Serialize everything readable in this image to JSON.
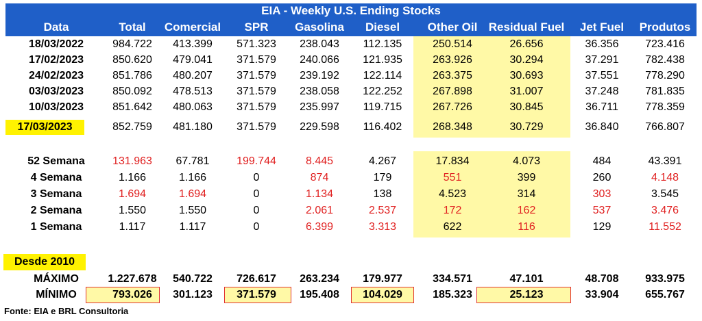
{
  "title": "EIA - Weekly U.S. Ending Stocks",
  "columns": [
    "Data",
    "Total",
    "Comercial",
    "SPR",
    "Gasolina",
    "Diesel",
    "Other Oil",
    "Residual Fuel",
    "Jet Fuel",
    "Produtos"
  ],
  "weekly_rows": [
    [
      "18/03/2022",
      "984.722",
      "413.399",
      "571.323",
      "238.043",
      "112.135",
      "250.514",
      "26.656",
      "36.356",
      "723.416"
    ],
    [
      "17/02/2023",
      "850.620",
      "479.041",
      "371.579",
      "240.066",
      "121.935",
      "263.926",
      "30.294",
      "37.291",
      "782.438"
    ],
    [
      "24/02/2023",
      "851.786",
      "480.207",
      "371.579",
      "239.192",
      "122.114",
      "263.375",
      "30.693",
      "37.551",
      "778.290"
    ],
    [
      "03/03/2023",
      "850.092",
      "478.513",
      "371.579",
      "238.058",
      "122.252",
      "267.898",
      "31.007",
      "37.248",
      "781.835"
    ],
    [
      "10/03/2023",
      "851.642",
      "480.063",
      "371.579",
      "235.997",
      "119.715",
      "267.726",
      "30.845",
      "36.711",
      "778.359"
    ],
    [
      "17/03/2023",
      "852.759",
      "481.180",
      "371.579",
      "229.598",
      "116.402",
      "268.348",
      "30.729",
      "36.840",
      "766.807"
    ]
  ],
  "change_rows": [
    [
      "52 Semana",
      "131.963",
      "67.781",
      "199.744",
      "8.445",
      "4.267",
      "17.834",
      "4.073",
      "484",
      "43.391"
    ],
    [
      "4 Semana",
      "1.166",
      "1.166",
      "0",
      "874",
      "179",
      "551",
      "399",
      "260",
      "4.148"
    ],
    [
      "3 Semana",
      "1.694",
      "1.694",
      "0",
      "1.134",
      "138",
      "4.523",
      "314",
      "303",
      "3.545"
    ],
    [
      "2 Semana",
      "1.550",
      "1.550",
      "0",
      "2.061",
      "2.537",
      "172",
      "162",
      "537",
      "3.476"
    ],
    [
      "1 Semana",
      "1.117",
      "1.117",
      "0",
      "6.399",
      "3.313",
      "622",
      "116",
      "129",
      "11.552"
    ]
  ],
  "change_red": [
    [
      false,
      true,
      false,
      true,
      true,
      false,
      false,
      false,
      false,
      false
    ],
    [
      false,
      false,
      false,
      false,
      true,
      false,
      true,
      false,
      false,
      true
    ],
    [
      false,
      true,
      true,
      false,
      true,
      false,
      false,
      false,
      true,
      false
    ],
    [
      false,
      false,
      false,
      false,
      true,
      true,
      true,
      true,
      true,
      true
    ],
    [
      false,
      false,
      false,
      false,
      true,
      true,
      false,
      true,
      false,
      true
    ]
  ],
  "desde_label": "Desde 2010",
  "max_row": [
    "MÁXIMO",
    "1.227.678",
    "540.722",
    "726.617",
    "263.234",
    "179.977",
    "334.571",
    "47.101",
    "48.708",
    "933.975"
  ],
  "min_row": [
    "MÍNIMO",
    "793.026",
    "301.123",
    "371.579",
    "195.408",
    "104.029",
    "185.323",
    "25.123",
    "33.904",
    "655.767"
  ],
  "source": "Fonte: EIA e BRL Consultoria",
  "colors": {
    "header": "#1f5fc8",
    "highlight": "#fff9a6",
    "yellow": "#fff200",
    "red": "#e02020"
  }
}
